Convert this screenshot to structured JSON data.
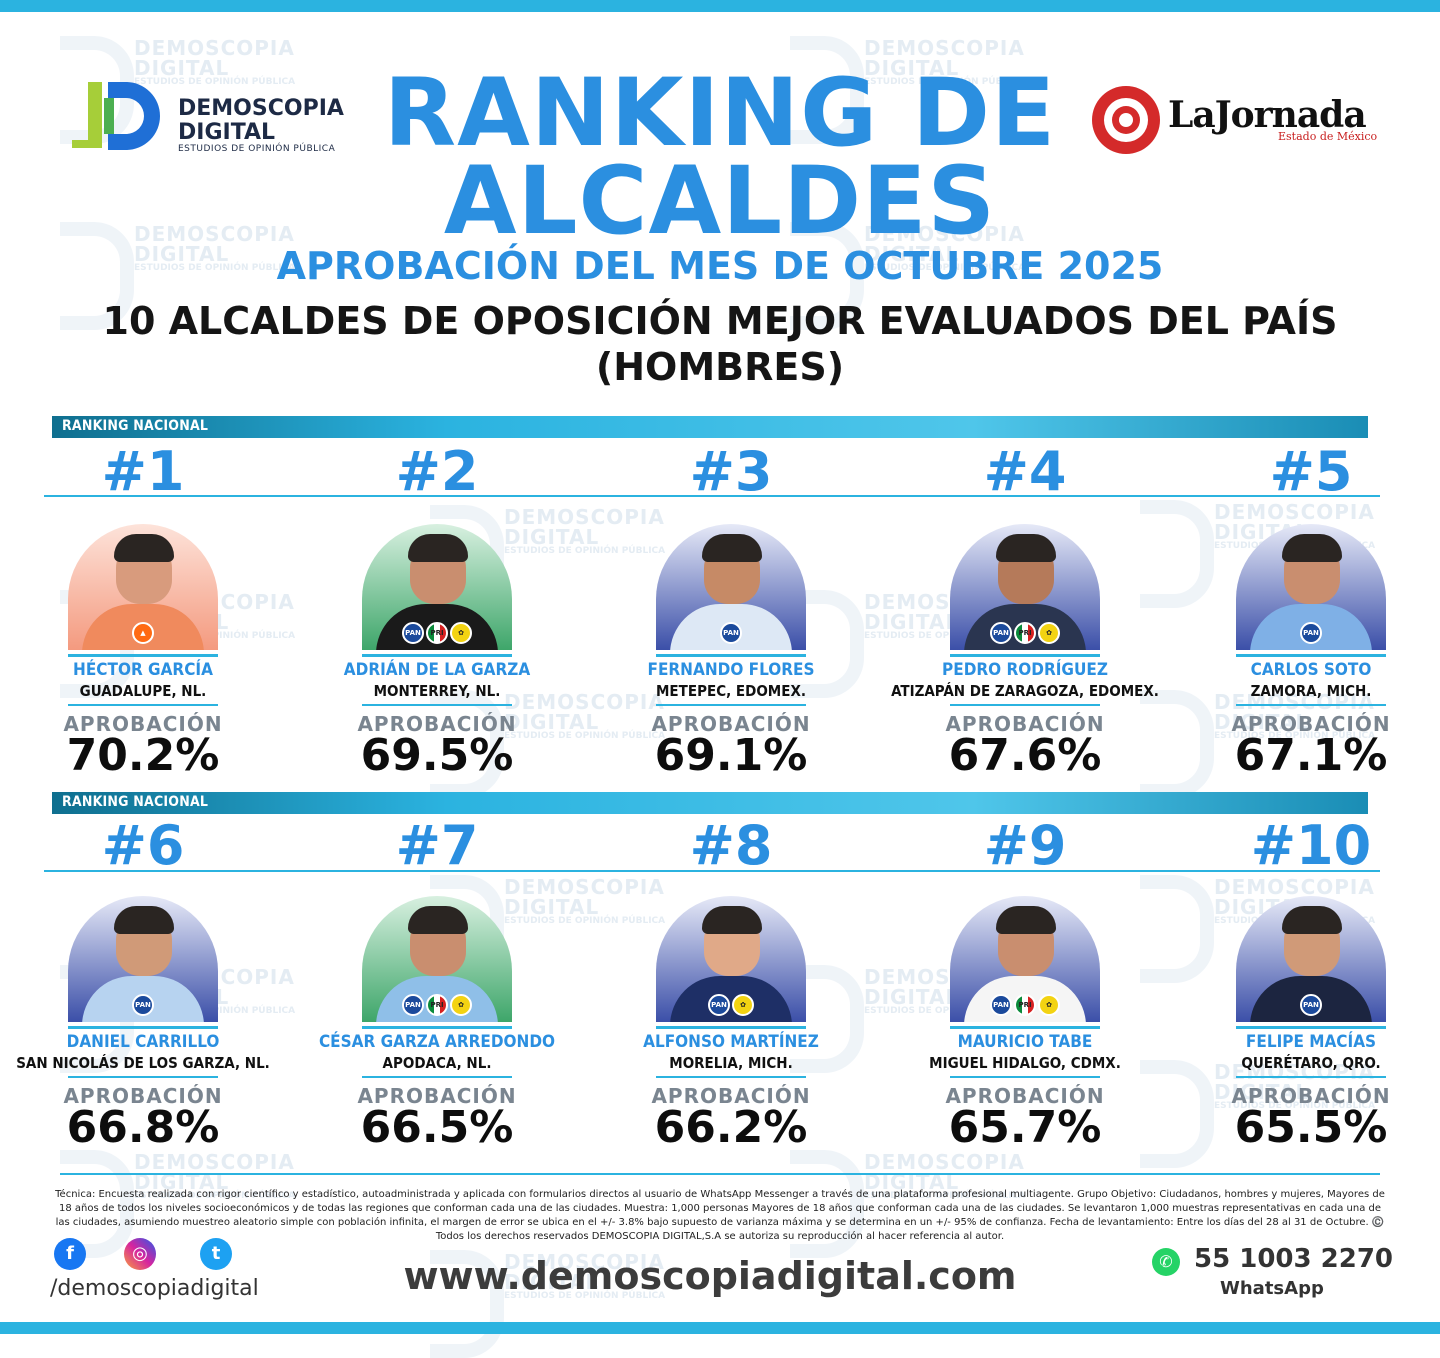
{
  "brand": {
    "demoscopia_line1": "DEMOSCOPIA",
    "demoscopia_line2": "DIGITAL",
    "demoscopia_tag": "ESTUDIOS DE OPINIÓN PÚBLICA",
    "jornada_name": "LaJornada",
    "jornada_sub": "Estado de México"
  },
  "title": "RANKING DE ALCALDES",
  "subtitle": "APROBACIÓN DEL MES DE OCTUBRE 2025",
  "heading": "10 ALCALDES DE OPOSICIÓN MEJOR EVALUADOS DEL PAÍS (HOMBRES)",
  "ranking_label": "RANKING NACIONAL",
  "approval_label": "APROBACIÓN",
  "mayors": [
    {
      "rank": "#1",
      "name": "HÉCTOR GARCÍA",
      "city": "GUADALUPE, NL.",
      "approval": "70.2%",
      "bg": "#f7a58e",
      "parties": [
        "MC"
      ]
    },
    {
      "rank": "#2",
      "name": "ADRIÁN DE LA GARZA",
      "city": "MONTERREY, NL.",
      "approval": "69.5%",
      "bg": "#3ea66a",
      "parties": [
        "PAN",
        "PRI",
        "PRD"
      ]
    },
    {
      "rank": "#3",
      "name": "FERNANDO FLORES",
      "city": "METEPEC, EDOMEX.",
      "approval": "69.1%",
      "bg": "#3b4fa8",
      "parties": [
        "PAN"
      ]
    },
    {
      "rank": "#4",
      "name": "PEDRO RODRÍGUEZ",
      "city": "ATIZAPÁN DE ZARAGOZA, EDOMEX.",
      "approval": "67.6%",
      "bg": "#3b4fa8",
      "parties": [
        "PAN",
        "PRI",
        "PRD"
      ]
    },
    {
      "rank": "#5",
      "name": "CARLOS SOTO",
      "city": "ZAMORA, MICH.",
      "approval": "67.1%",
      "bg": "#3b4fa8",
      "parties": [
        "PAN"
      ]
    },
    {
      "rank": "#6",
      "name": "DANIEL CARRILLO",
      "city": "SAN NICOLÁS DE LOS GARZA, NL.",
      "approval": "66.8%",
      "bg": "#3b4fa8",
      "parties": [
        "PAN"
      ]
    },
    {
      "rank": "#7",
      "name": "CÉSAR GARZA ARREDONDO",
      "city": "APODACA, NL.",
      "approval": "66.5%",
      "bg": "#3ea66a",
      "parties": [
        "PAN",
        "PRI",
        "PRD"
      ]
    },
    {
      "rank": "#8",
      "name": "ALFONSO MARTÍNEZ",
      "city": "MORELIA, MICH.",
      "approval": "66.2%",
      "bg": "#3b4fa8",
      "parties": [
        "PAN",
        "PRD"
      ]
    },
    {
      "rank": "#9",
      "name": "MAURICIO TABE",
      "city": "MIGUEL HIDALGO, CDMX.",
      "approval": "65.7%",
      "bg": "#3b4fa8",
      "parties": [
        "PAN",
        "PRI",
        "PRD"
      ]
    },
    {
      "rank": "#10",
      "name": "FELIPE MACÍAS",
      "city": "QUERÉTARO, QRO.",
      "approval": "65.5%",
      "bg": "#3b4fa8",
      "parties": [
        "PAN"
      ]
    }
  ],
  "tecnica": "Técnica: Encuesta realizada con rigor científico y estadístico, autoadministrada y aplicada con formularios directos al usuario de WhatsApp Messenger a través de una plataforma profesional multiagente. Grupo Objetivo: Ciudadanos, hombres y mujeres, Mayores de 18 años de todos los niveles socioeconómicos y de todas las regiones que conforman cada una de las ciudades. Muestra: 1,000 personas Mayores de 18 años que conforman cada una de las ciudades. Se levantaron 1,000 muestras representativas en cada una de las ciudades, asumiendo muestreo aleatorio simple con población infinita, el margen de error se ubica en el +/- 3.8% bajo supuesto de varianza máxima y se determina en un +/- 95% de confianza. Fecha de levantamiento: Entre los días del 28 al 31 de Octubre. ©️ Todos los derechos reservados DEMOSCOPIA DIGITAL,S.A se autoriza su reproducción al hacer referencia al autor.",
  "footer": {
    "handle": "/demoscopiadigital",
    "website": "www.demoscopiadigital.com",
    "phone": "55 1003 2270",
    "whatsapp": "WhatsApp"
  },
  "colors": {
    "accent": "#2b8fe0",
    "band": "#2bb3e0"
  }
}
